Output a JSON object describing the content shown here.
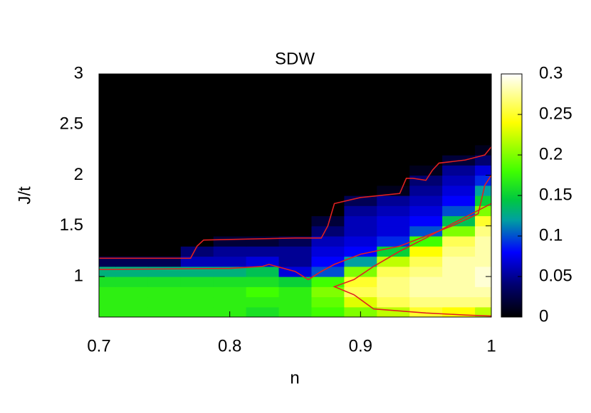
{
  "chart_data": {
    "type": "heatmap",
    "title": "SDW",
    "xlabel": "n",
    "ylabel": "J/t",
    "x": [
      0.7,
      0.725,
      0.75,
      0.775,
      0.8,
      0.825,
      0.85,
      0.875,
      0.9,
      0.925,
      0.95,
      0.975,
      1.0
    ],
    "y": [
      0.65,
      0.75,
      0.85,
      0.95,
      1.05,
      1.15,
      1.25,
      1.35,
      1.45,
      1.55,
      1.65,
      1.75,
      1.85,
      1.95,
      2.05,
      2.15,
      2.25,
      2.35,
      2.45,
      2.55,
      2.65,
      2.75,
      2.85,
      2.95
    ],
    "z": [
      [
        0.17,
        0.17,
        0.17,
        0.17,
        0.17,
        0.16,
        0.17,
        0.18,
        0.2,
        0.22,
        0.25,
        0.24,
        0.22
      ],
      [
        0.17,
        0.17,
        0.17,
        0.17,
        0.17,
        0.17,
        0.17,
        0.19,
        0.23,
        0.26,
        0.27,
        0.27,
        0.27
      ],
      [
        0.17,
        0.17,
        0.17,
        0.17,
        0.17,
        0.18,
        0.17,
        0.2,
        0.26,
        0.27,
        0.28,
        0.28,
        0.28
      ],
      [
        0.16,
        0.16,
        0.16,
        0.16,
        0.16,
        0.16,
        0.15,
        0.18,
        0.25,
        0.27,
        0.28,
        0.28,
        0.29
      ],
      [
        0.13,
        0.13,
        0.13,
        0.13,
        0.13,
        0.14,
        0.07,
        0.1,
        0.2,
        0.26,
        0.27,
        0.28,
        0.29
      ],
      [
        0.03,
        0.03,
        0.03,
        0.06,
        0.06,
        0.07,
        0.05,
        0.08,
        0.12,
        0.22,
        0.26,
        0.28,
        0.28
      ],
      [
        0,
        0,
        0,
        0.04,
        0.05,
        0.05,
        0.05,
        0.07,
        0.08,
        0.15,
        0.24,
        0.27,
        0.28
      ],
      [
        0,
        0,
        0,
        0,
        0.02,
        0.02,
        0.03,
        0.06,
        0.07,
        0.09,
        0.18,
        0.26,
        0.28
      ],
      [
        0,
        0,
        0,
        0,
        0,
        0,
        0,
        0.04,
        0.06,
        0.07,
        0.1,
        0.2,
        0.27
      ],
      [
        0,
        0,
        0,
        0,
        0,
        0,
        0,
        0.02,
        0.06,
        0.07,
        0.08,
        0.14,
        0.25
      ],
      [
        0,
        0,
        0,
        0,
        0,
        0,
        0,
        0,
        0.05,
        0.06,
        0.07,
        0.1,
        0.2
      ],
      [
        0,
        0,
        0,
        0,
        0,
        0,
        0,
        0,
        0.03,
        0.05,
        0.06,
        0.08,
        0.15
      ],
      [
        0,
        0,
        0,
        0,
        0,
        0,
        0,
        0,
        0,
        0.01,
        0.05,
        0.07,
        0.12
      ],
      [
        0,
        0,
        0,
        0,
        0,
        0,
        0,
        0,
        0,
        0,
        0.04,
        0.06,
        0.09
      ],
      [
        0,
        0,
        0,
        0,
        0,
        0,
        0,
        0,
        0,
        0,
        0.01,
        0.05,
        0.07
      ],
      [
        0,
        0,
        0,
        0,
        0,
        0,
        0,
        0,
        0,
        0,
        0,
        0.02,
        0.04
      ],
      [
        0,
        0,
        0,
        0,
        0,
        0,
        0,
        0,
        0,
        0,
        0,
        0,
        0.01
      ],
      [
        0,
        0,
        0,
        0,
        0,
        0,
        0,
        0,
        0,
        0,
        0,
        0,
        0
      ],
      [
        0,
        0,
        0,
        0,
        0,
        0,
        0,
        0,
        0,
        0,
        0,
        0,
        0
      ],
      [
        0,
        0,
        0,
        0,
        0,
        0,
        0,
        0,
        0,
        0,
        0,
        0,
        0
      ],
      [
        0,
        0,
        0,
        0,
        0,
        0,
        0,
        0,
        0,
        0,
        0,
        0,
        0
      ],
      [
        0,
        0,
        0,
        0,
        0,
        0,
        0,
        0,
        0,
        0,
        0,
        0,
        0
      ],
      [
        0,
        0,
        0,
        0,
        0,
        0,
        0,
        0,
        0,
        0,
        0,
        0,
        0
      ],
      [
        0,
        0,
        0,
        0,
        0,
        0,
        0,
        0,
        0,
        0,
        0,
        0,
        0
      ]
    ],
    "colormap": [
      [
        0,
        "#000000"
      ],
      [
        0.04,
        "#000070"
      ],
      [
        0.08,
        "#0000ff"
      ],
      [
        0.12,
        "#00a0a0"
      ],
      [
        0.145,
        "#00c840"
      ],
      [
        0.18,
        "#40ff00"
      ],
      [
        0.24,
        "#ffff00"
      ],
      [
        0.3,
        "#ffffff"
      ]
    ],
    "contours": [
      {
        "color": "#e02020",
        "x": [
          0.7,
          0.77,
          0.775,
          0.78,
          0.85,
          0.87,
          0.875,
          0.88,
          0.9,
          0.93,
          0.935,
          0.94,
          0.95,
          0.955,
          0.96,
          0.98,
          0.995,
          1.0
        ],
        "y": [
          1.18,
          1.18,
          1.3,
          1.36,
          1.38,
          1.38,
          1.5,
          1.72,
          1.78,
          1.82,
          1.97,
          1.97,
          1.95,
          2.05,
          2.12,
          2.15,
          2.2,
          2.28
        ]
      },
      {
        "color": "#e02020",
        "x": [
          0.7,
          0.8,
          0.825,
          0.83,
          0.85,
          0.86,
          0.87,
          0.88,
          0.9,
          0.93,
          0.95,
          0.97,
          0.99,
          0.995,
          1.0
        ],
        "y": [
          1.07,
          1.08,
          1.1,
          1.12,
          1.05,
          0.97,
          1.05,
          1.12,
          1.22,
          1.3,
          1.4,
          1.5,
          1.62,
          1.9,
          2.0
        ]
      },
      {
        "color": "#e02020",
        "x": [
          1.0,
          0.97,
          0.95,
          0.93,
          0.91,
          0.895,
          0.88,
          0.895,
          0.91,
          0.95,
          0.98,
          1.0
        ],
        "y": [
          1.72,
          1.52,
          1.38,
          1.25,
          1.1,
          0.97,
          0.9,
          0.82,
          0.68,
          0.64,
          0.62,
          0.61
        ]
      }
    ],
    "xlim": [
      0.7,
      1
    ],
    "xticks": [
      0.7,
      0.8,
      0.9,
      1
    ],
    "ylim": [
      0.6,
      3
    ],
    "yticks": [
      1,
      1.5,
      2,
      2.5,
      3
    ],
    "zlim": [
      0,
      0.3
    ],
    "zticks": [
      0,
      0.05,
      0.1,
      0.15,
      0.2,
      0.25,
      0.3
    ]
  }
}
